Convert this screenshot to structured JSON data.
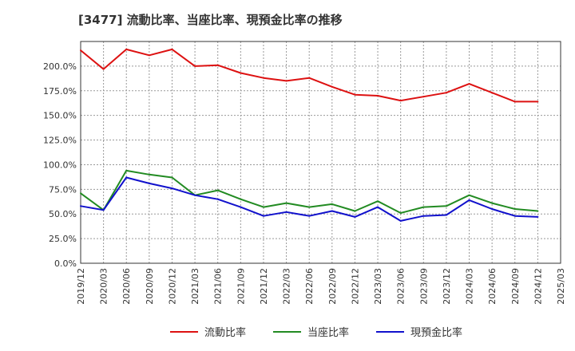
{
  "chart_data": {
    "type": "line",
    "title": "[3477]  流動比率、当座比率、現預金比率の推移",
    "xlabel": "",
    "ylabel": "",
    "ylim": [
      0,
      225
    ],
    "yticks": [
      0,
      25,
      50,
      75,
      100,
      125,
      150,
      175,
      200
    ],
    "ytick_labels": [
      "0.0%",
      "25.0%",
      "50.0%",
      "75.0%",
      "100.0%",
      "125.0%",
      "150.0%",
      "175.0%",
      "200.0%"
    ],
    "categories": [
      "2019/12",
      "2020/03",
      "2020/06",
      "2020/09",
      "2020/12",
      "2021/03",
      "2021/06",
      "2021/09",
      "2021/12",
      "2022/03",
      "2022/06",
      "2022/09",
      "2022/12",
      "2023/03",
      "2023/06",
      "2023/09",
      "2023/12",
      "2024/03",
      "2024/06",
      "2024/09",
      "2024/12",
      "2025/03"
    ],
    "grid": true,
    "legend_position": "bottom",
    "series": [
      {
        "name": "流動比率",
        "color": "#dd1111",
        "values": [
          216,
          197,
          217,
          211,
          217,
          200,
          201,
          193,
          188,
          185,
          188,
          179,
          171,
          170,
          165,
          169,
          173,
          182,
          173,
          164,
          164,
          null
        ]
      },
      {
        "name": "当座比率",
        "color": "#228b22",
        "values": [
          71,
          54,
          94,
          90,
          87,
          69,
          74,
          65,
          57,
          61,
          57,
          60,
          53,
          63,
          51,
          57,
          58,
          69,
          61,
          55,
          53,
          null
        ]
      },
      {
        "name": "現預金比率",
        "color": "#1111cc",
        "values": [
          58,
          54,
          87,
          81,
          76,
          69,
          65,
          57,
          48,
          52,
          48,
          53,
          47,
          57,
          43,
          48,
          49,
          64,
          55,
          48,
          47,
          null
        ]
      }
    ]
  }
}
